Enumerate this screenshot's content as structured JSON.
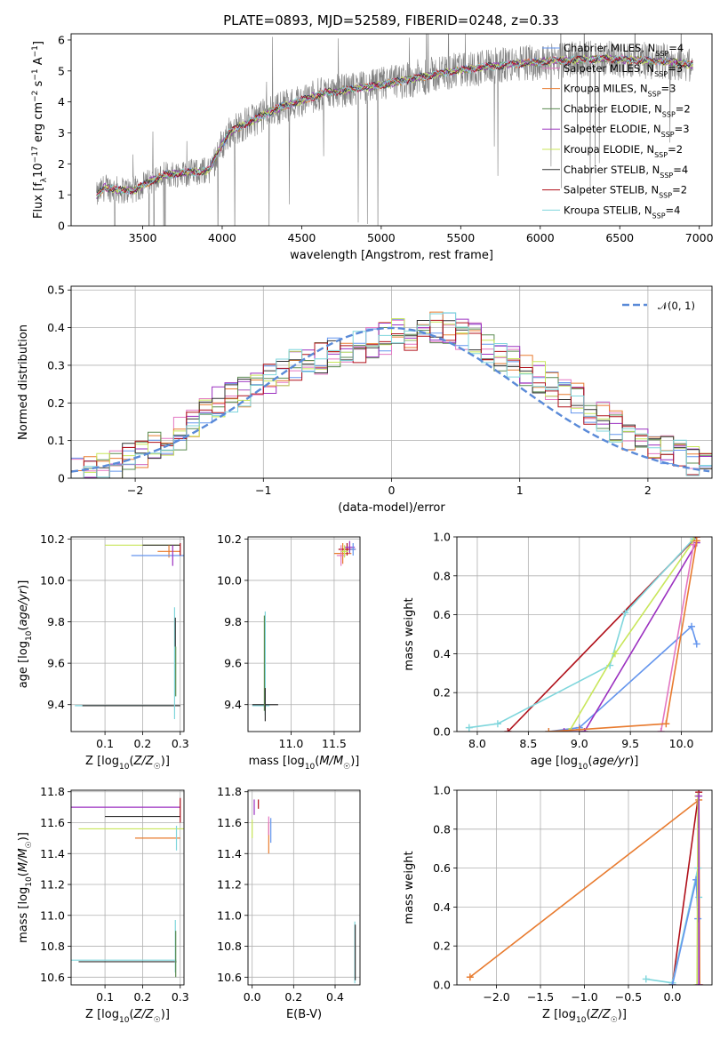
{
  "figure": {
    "title": "PLATE=0893, MJD=52589, FIBERID=0248, z=0.33"
  },
  "chart_data": [
    {
      "id": "spectrum",
      "type": "line",
      "xlabel": "wavelength [Angstrom, rest frame]",
      "ylabel": "Flux [f_λ 10^-17 erg cm^-2 s^-1 A^-1]",
      "xlim": [
        3050,
        7080
      ],
      "ylim": [
        0,
        6.2
      ],
      "xticks": [
        3500,
        4000,
        4500,
        5000,
        5500,
        6000,
        6500,
        7000
      ],
      "yticks": [
        0,
        1,
        2,
        3,
        4,
        5,
        6
      ],
      "grid": false,
      "legend_position": "top-right",
      "data_color": "#808080",
      "continuum_knots": {
        "x": [
          3210,
          3260,
          3350,
          3450,
          3550,
          3650,
          3750,
          3850,
          3920,
          3980,
          4050,
          4150,
          4250,
          4350,
          4500,
          4650,
          4800,
          5000,
          5200,
          5400,
          5600,
          5800,
          6000,
          6200,
          6400,
          6600,
          6800,
          6950
        ],
        "y": [
          0.95,
          1.25,
          1.15,
          1.15,
          1.45,
          1.65,
          1.7,
          1.75,
          1.8,
          2.45,
          3.05,
          3.3,
          3.55,
          3.8,
          4.05,
          4.3,
          4.4,
          4.55,
          4.75,
          4.95,
          5.1,
          5.2,
          5.3,
          5.35,
          5.4,
          5.35,
          5.3,
          5.2
        ]
      },
      "legend": [
        {
          "label": "Chabrier MILES, N",
          "sub": "SSP",
          "n": "4",
          "color": "#6495ed"
        },
        {
          "label": "Salpeter MILES, N",
          "sub": "SSP",
          "n": "3",
          "color": "#e377c2"
        },
        {
          "label": "Kroupa MILES, N",
          "sub": "SSP",
          "n": "3",
          "color": "#e87b2f"
        },
        {
          "label": "Chabrier ELODIE, N",
          "sub": "SSP",
          "n": "2",
          "color": "#5a8a50"
        },
        {
          "label": "Salpeter ELODIE, N",
          "sub": "SSP",
          "n": "3",
          "color": "#9b30c0"
        },
        {
          "label": "Kroupa ELODIE, N",
          "sub": "SSP",
          "n": "2",
          "color": "#c8e65a"
        },
        {
          "label": "Chabrier STELIB, N",
          "sub": "SSP",
          "n": "4",
          "color": "#333333"
        },
        {
          "label": "Salpeter STELIB, N",
          "sub": "SSP",
          "n": "2",
          "color": "#b0101a"
        },
        {
          "label": "Kroupa STELIB, N",
          "sub": "SSP",
          "n": "4",
          "color": "#7fd6dc"
        }
      ]
    },
    {
      "id": "residuals",
      "type": "histogram",
      "xlabel": "(data-model)/error",
      "ylabel": "Normed distribution",
      "xlim": [
        -2.5,
        2.5
      ],
      "ylim": [
        0,
        0.51
      ],
      "xticks": [
        -2,
        -1,
        0,
        1,
        2
      ],
      "yticks": [
        0.0,
        0.1,
        0.2,
        0.3,
        0.4,
        0.5
      ],
      "grid": true,
      "legend_position": "top-right",
      "reference_curve": {
        "label": "𝒩(0, 1)",
        "mean": 0,
        "sigma": 1,
        "color": "#5a8ad8",
        "style": "dashed"
      },
      "bins": {
        "start": -2.5,
        "width": 0.1,
        "baseline": [
          0.02,
          0.02,
          0.03,
          0.03,
          0.05,
          0.06,
          0.08,
          0.1,
          0.12,
          0.14,
          0.17,
          0.2,
          0.22,
          0.23,
          0.25,
          0.27,
          0.28,
          0.3,
          0.31,
          0.32,
          0.33,
          0.34,
          0.35,
          0.36,
          0.37,
          0.38,
          0.38,
          0.39,
          0.4,
          0.4,
          0.38,
          0.37,
          0.35,
          0.33,
          0.31,
          0.29,
          0.27,
          0.25,
          0.23,
          0.21,
          0.18,
          0.16,
          0.14,
          0.12,
          0.1,
          0.08,
          0.07,
          0.06,
          0.05,
          0.05
        ]
      },
      "series": [
        {
          "name": "Chabrier MILES",
          "color": "#6495ed"
        },
        {
          "name": "Salpeter MILES",
          "color": "#e377c2"
        },
        {
          "name": "Kroupa MILES",
          "color": "#e87b2f"
        },
        {
          "name": "Chabrier ELODIE",
          "color": "#5a8a50"
        },
        {
          "name": "Salpeter ELODIE",
          "color": "#9b30c0"
        },
        {
          "name": "Kroupa ELODIE",
          "color": "#c8e65a"
        },
        {
          "name": "Chabrier STELIB",
          "color": "#333333"
        },
        {
          "name": "Salpeter STELIB",
          "color": "#b0101a"
        },
        {
          "name": "Kroupa STELIB",
          "color": "#7fd6dc"
        }
      ]
    },
    {
      "id": "age_vs_Z",
      "type": "scatter",
      "xlabel": "Z [log10(Z/Z☉)]",
      "ylabel": "age [log10(age/yr)]",
      "xlim": [
        0.01,
        0.31
      ],
      "ylim": [
        9.27,
        10.21
      ],
      "xticks": [
        0.1,
        0.2,
        0.3
      ],
      "yticks": [
        9.4,
        9.6,
        9.8,
        10.0,
        10.2
      ],
      "ytick_labels": [
        "9.4",
        "9.6",
        "9.8",
        "10.0",
        "10.2"
      ],
      "grid": true
    },
    {
      "id": "age_vs_mass",
      "type": "scatter",
      "xlabel": "mass [log10(M/M☉)]",
      "ylabel": "",
      "xlim": [
        10.5,
        11.8
      ],
      "ylim": [
        9.27,
        10.21
      ],
      "xticks": [
        11.0,
        11.5
      ],
      "xtick_labels": [
        "11.0",
        "11.5"
      ],
      "yticks": [
        9.4,
        9.6,
        9.8,
        10.0,
        10.2
      ],
      "ytick_labels": [
        "9.4",
        "9.6",
        "9.8",
        "10.0",
        "10.2"
      ],
      "grid": true
    },
    {
      "id": "massweight_vs_age",
      "type": "line",
      "xlabel": "age [log10(age/yr)]",
      "ylabel": "mass weight",
      "xlim": [
        7.8,
        10.3
      ],
      "ylim": [
        0,
        1.0
      ],
      "xticks": [
        8.0,
        8.5,
        9.0,
        9.5,
        10.0
      ],
      "xtick_labels": [
        "8.0",
        "8.5",
        "9.0",
        "9.5",
        "10.0"
      ],
      "yticks": [
        0,
        0.2,
        0.4,
        0.6,
        0.8,
        1.0
      ],
      "ytick_labels": [
        "0.0",
        "0.2",
        "0.4",
        "0.6",
        "0.8",
        "1.0"
      ],
      "grid": true
    },
    {
      "id": "mass_vs_Z",
      "type": "scatter",
      "xlabel": "Z [log10(Z/Z☉)]",
      "ylabel": "mass [log10(M/M☉)]",
      "xlim": [
        0.01,
        0.31
      ],
      "ylim": [
        10.55,
        11.81
      ],
      "xticks": [
        0.1,
        0.2,
        0.3
      ],
      "yticks": [
        10.6,
        10.8,
        11.0,
        11.2,
        11.4,
        11.6,
        11.8
      ],
      "ytick_labels": [
        "10.6",
        "10.8",
        "11.0",
        "11.2",
        "11.4",
        "11.6",
        "11.8"
      ],
      "grid": true
    },
    {
      "id": "mass_vs_ebv",
      "type": "scatter",
      "xlabel": "E(B-V)",
      "ylabel": "",
      "xlim": [
        -0.02,
        0.52
      ],
      "ylim": [
        10.55,
        11.81
      ],
      "xticks": [
        0.0,
        0.2,
        0.4
      ],
      "xtick_labels": [
        "0.0",
        "0.2",
        "0.4"
      ],
      "yticks": [
        10.6,
        10.8,
        11.0,
        11.2,
        11.4,
        11.6,
        11.8
      ],
      "ytick_labels": [
        "10.6",
        "10.8",
        "11.0",
        "11.2",
        "11.4",
        "11.6",
        "11.8"
      ],
      "grid": true
    },
    {
      "id": "massweight_vs_Z",
      "type": "line",
      "xlabel": "Z [log10(Z/Z☉)]",
      "ylabel": "mass weight",
      "xlim": [
        -2.45,
        0.45
      ],
      "ylim": [
        0,
        1.0
      ],
      "xticks": [
        -2.0,
        -1.5,
        -1.0,
        -0.5,
        0.0
      ],
      "xtick_labels": [
        "−2.0",
        "−1.5",
        "−1.0",
        "−0.5",
        "0.0"
      ],
      "yticks": [
        0,
        0.2,
        0.4,
        0.6,
        0.8,
        1.0
      ],
      "ytick_labels": [
        "0.0",
        "0.2",
        "0.4",
        "0.6",
        "0.8",
        "1.0"
      ],
      "grid": true
    }
  ]
}
